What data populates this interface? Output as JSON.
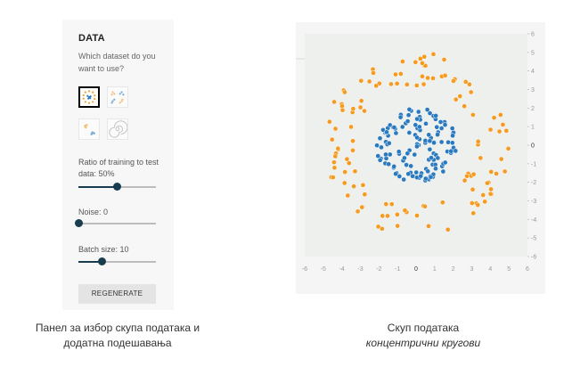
{
  "panel": {
    "title": "DATA",
    "question": "Which dataset do you want to use?",
    "datasets": [
      {
        "name": "circle",
        "selected": true
      },
      {
        "name": "xor",
        "selected": false
      },
      {
        "name": "gauss",
        "selected": false
      },
      {
        "name": "spiral",
        "selected": false
      }
    ],
    "ratio": {
      "label": "Ratio of training to test data:",
      "value": "50%",
      "fraction": 0.5
    },
    "noise": {
      "label": "Noise:",
      "value": "0",
      "fraction": 0.0
    },
    "batch": {
      "label": "Batch size:",
      "value": "10",
      "fraction": 0.3
    },
    "regenerate_label": "REGENERATE"
  },
  "captions": {
    "left_line1": "Панел за избор скупа података и",
    "left_line2": "додатна подешавања",
    "right_line1": "Скуп података",
    "right_line2": "концентрични кругови"
  },
  "colors": {
    "orange": "#F59B22",
    "blue": "#2B7ABF",
    "slider": "#183D4E"
  },
  "chart_data": {
    "type": "scatter",
    "title": "",
    "xlabel": "",
    "ylabel": "",
    "xlim": [
      -6,
      6
    ],
    "ylim": [
      -6,
      6
    ],
    "x_ticks": [
      "-6",
      "-5",
      "-4",
      "-3",
      "-2",
      "-1",
      "0",
      "1",
      "2",
      "3",
      "4",
      "5",
      "6"
    ],
    "y_ticks": [
      "6",
      "5",
      "4",
      "3",
      "2",
      "1",
      "0",
      "-1",
      "-2",
      "-3",
      "-4",
      "-5",
      "-6"
    ],
    "inner_radius_max": 2.0,
    "outer_radius_min": 3.2,
    "outer_radius_max": 5.0,
    "series": [
      {
        "color": "#2B7ABF",
        "count": 130
      },
      {
        "color": "#F59B22",
        "count": 120
      }
    ]
  }
}
